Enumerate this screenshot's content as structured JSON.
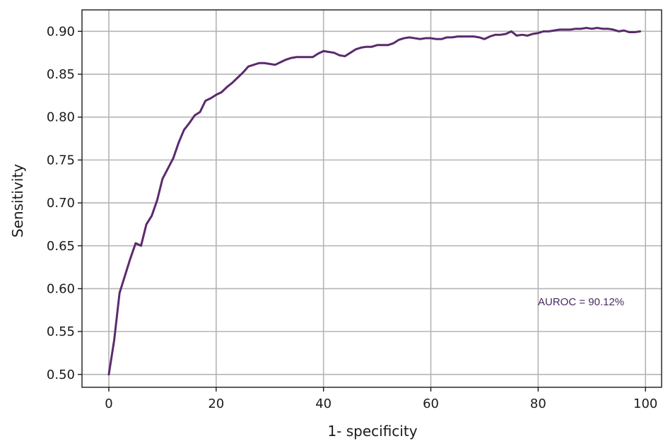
{
  "chart_data": {
    "type": "line",
    "xlabel": "1- specificity",
    "ylabel": "Sensitivity",
    "xlim": [
      -5,
      103
    ],
    "ylim": [
      0.485,
      0.925
    ],
    "x_ticks": [
      0,
      20,
      40,
      60,
      80,
      100
    ],
    "x_tick_labels": [
      "0",
      "20",
      "40",
      "60",
      "80",
      "100"
    ],
    "y_ticks": [
      0.5,
      0.55,
      0.6,
      0.65,
      0.7,
      0.75,
      0.8,
      0.85,
      0.9
    ],
    "y_tick_labels": [
      "0.50",
      "0.55",
      "0.60",
      "0.65",
      "0.70",
      "0.75",
      "0.80",
      "0.85",
      "0.90"
    ],
    "grid": true,
    "annotation": "AUROC = 90.12%",
    "colors": {
      "line": "#5b2a6e",
      "annotation": "#4a2a60"
    },
    "series": [
      {
        "x": [
          0,
          1,
          2,
          3,
          4,
          5,
          6,
          7,
          8,
          9,
          10,
          11,
          12,
          13,
          14,
          15,
          16,
          17,
          18,
          19,
          20,
          21,
          22,
          23,
          24,
          25,
          26,
          27,
          28,
          29,
          30,
          31,
          32,
          33,
          34,
          35,
          36,
          37,
          38,
          39,
          40,
          41,
          42,
          43,
          44,
          45,
          46,
          47,
          48,
          49,
          50,
          51,
          52,
          53,
          54,
          55,
          56,
          57,
          58,
          59,
          60,
          61,
          62,
          63,
          64,
          65,
          66,
          67,
          68,
          69,
          70,
          71,
          72,
          73,
          74,
          75,
          76,
          77,
          78,
          79,
          80,
          81,
          82,
          83,
          84,
          85,
          86,
          87,
          88,
          89,
          90,
          91,
          92,
          93,
          94,
          95,
          96,
          97,
          98,
          99
        ],
        "values": [
          0.5,
          0.54,
          0.595,
          0.615,
          0.635,
          0.653,
          0.65,
          0.675,
          0.685,
          0.703,
          0.728,
          0.74,
          0.752,
          0.77,
          0.785,
          0.793,
          0.802,
          0.806,
          0.819,
          0.822,
          0.826,
          0.829,
          0.835,
          0.84,
          0.846,
          0.852,
          0.859,
          0.861,
          0.863,
          0.863,
          0.862,
          0.861,
          0.864,
          0.867,
          0.869,
          0.87,
          0.87,
          0.87,
          0.87,
          0.874,
          0.877,
          0.876,
          0.875,
          0.872,
          0.871,
          0.875,
          0.879,
          0.881,
          0.882,
          0.882,
          0.884,
          0.884,
          0.884,
          0.886,
          0.89,
          0.892,
          0.893,
          0.892,
          0.891,
          0.892,
          0.892,
          0.891,
          0.891,
          0.893,
          0.893,
          0.894,
          0.894,
          0.894,
          0.894,
          0.893,
          0.891,
          0.894,
          0.896,
          0.896,
          0.897,
          0.9,
          0.895,
          0.896,
          0.895,
          0.897,
          0.898,
          0.9,
          0.9,
          0.901,
          0.902,
          0.902,
          0.902,
          0.903,
          0.903,
          0.904,
          0.903,
          0.904,
          0.903,
          0.903,
          0.902,
          0.9,
          0.901,
          0.899,
          0.899,
          0.9
        ]
      }
    ]
  }
}
